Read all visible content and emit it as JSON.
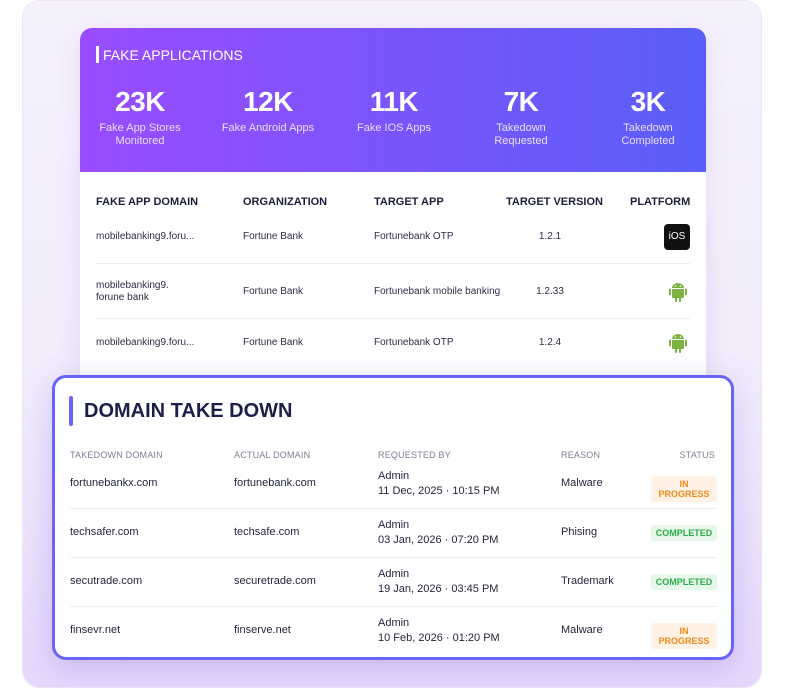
{
  "fake_applications": {
    "title": "FAKE APPLICATIONS",
    "stats": [
      {
        "value": "23K",
        "label": "Fake App Stores Monitored"
      },
      {
        "value": "12K",
        "label": "Fake Android Apps"
      },
      {
        "value": "11K",
        "label": "Fake IOS Apps"
      },
      {
        "value": "7K",
        "label": "Takedown Requested"
      },
      {
        "value": "3K",
        "label": "Takedown Completed"
      }
    ],
    "headers": [
      "FAKE APP DOMAIN",
      "ORGANIZATION",
      "TARGET APP",
      "TARGET VERSION",
      "PLATFORM"
    ],
    "rows": [
      {
        "domain": "mobilebanking9.foru...",
        "organization": "Fortune Bank",
        "target_app": "Fortunebank OTP",
        "version": "1.2.1",
        "platform_badge": "iOS"
      },
      {
        "domain": "mobilebanking9.\nforune bank",
        "organization": "Fortune Bank",
        "target_app": "Fortunebank mobile banking",
        "version": "1.2.33"
      },
      {
        "domain": "mobilebanking9.foru...",
        "organization": "Fortune Bank",
        "target_app": "Fortunebank OTP",
        "version": "1.2.4"
      }
    ]
  },
  "domain_take_down": {
    "title": "DOMAIN TAKE DOWN",
    "headers": [
      "TAKEDOWN DOMAIN",
      "ACTUAL DOMAIN",
      "REQUESTED BY",
      "REASON",
      "STATUS"
    ],
    "rows": [
      {
        "takedown_domain": "fortunebankx.com",
        "actual_domain": "fortunebank.com",
        "requested_by": "Admin",
        "date": "11 Dec, 2025 · 10:15 PM",
        "reason": "Malware",
        "status": "IN PROGRESS"
      },
      {
        "takedown_domain": "techsafer.com",
        "actual_domain": "techsafe.com",
        "requested_by": "Admin",
        "date": "03 Jan, 2026 · 07:20 PM",
        "reason": "Phising",
        "status": "COMPLETED"
      },
      {
        "takedown_domain": "secutrade.com",
        "actual_domain": "securetrade.com",
        "requested_by": "Admin",
        "date": "19 Jan, 2026 · 03:45 PM",
        "reason": "Trademark",
        "status": "COMPLETED"
      },
      {
        "takedown_domain": "finsevr.net",
        "actual_domain": "finserve.net",
        "requested_by": "Admin",
        "date": "10 Feb, 2026 · 01:20 PM",
        "reason": "Malware",
        "status": "IN PROGRESS"
      }
    ]
  }
}
